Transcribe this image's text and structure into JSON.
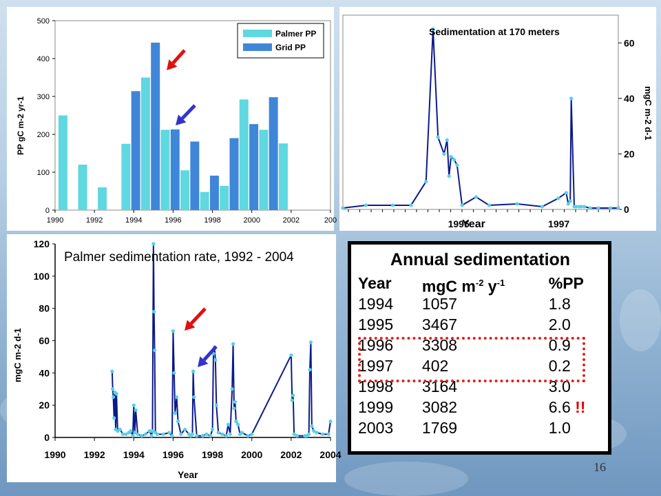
{
  "slide_number": "16",
  "colors": {
    "palmer_pp": "#5fd8e0",
    "grid_pp": "#3f86d8",
    "line_dark": "#0a1a8a",
    "marker": "#58d0e6",
    "red_arrow": "#e01010",
    "blue_arrow": "#3333cc"
  },
  "chart_data": [
    {
      "type": "bar",
      "ylabel": "PP gC m-2 yr-1",
      "ylim": [
        0,
        500
      ],
      "xlim": [
        1990,
        2004
      ],
      "yticks": [
        "0",
        "100",
        "200",
        "300",
        "400",
        "500"
      ],
      "xticks": [
        "1990",
        "1992",
        "1994",
        "1996",
        "1998",
        "2000",
        "2002",
        "200"
      ],
      "legend": {
        "position": "top-right"
      },
      "series": [
        {
          "name": "Palmer PP",
          "x": [
            1990.4,
            1991.4,
            1992.4,
            1993.6,
            1994.6,
            1995.6,
            1996.6,
            1997.6,
            1998.6,
            1999.6,
            2000.6,
            2001.6
          ],
          "values": [
            250,
            120,
            60,
            175,
            350,
            212,
            105,
            48,
            64,
            292,
            212,
            176
          ]
        },
        {
          "name": "Grid PP",
          "x": [
            1994.1,
            1995.1,
            1996.1,
            1997.1,
            1998.1,
            1999.1,
            2000.1,
            2001.1
          ],
          "values": [
            314,
            442,
            213,
            181,
            91,
            190,
            227,
            298
          ]
        }
      ]
    },
    {
      "type": "line",
      "title": "Sedimentation at 170 meters",
      "xlabel": "Year",
      "ylabel": "mgC m-2 d-1",
      "ylim": [
        0,
        70
      ],
      "yticks": [
        "0",
        "20",
        "40",
        "60"
      ],
      "xticks": [
        "1996",
        "1997"
      ],
      "x": [
        1995.05,
        1995.28,
        1995.55,
        1995.73,
        1995.88,
        1995.95,
        1996.0,
        1996.06,
        1996.09,
        1996.11,
        1996.13,
        1996.16,
        1996.19,
        1996.24,
        1996.38,
        1996.51,
        1996.79,
        1997.04,
        1997.2,
        1997.28,
        1997.3,
        1997.32,
        1997.33,
        1997.36,
        1997.38,
        1997.41,
        1997.43,
        1997.46,
        1997.52,
        1997.6,
        1997.72,
        1997.8
      ],
      "values": [
        0.5,
        1.5,
        1.5,
        1.5,
        10,
        65,
        26,
        20,
        25,
        12,
        19,
        18,
        16,
        1.5,
        4.5,
        1.5,
        2,
        1,
        4,
        6,
        2,
        3,
        40,
        1,
        1,
        1,
        1,
        1,
        0.5,
        0.5,
        0.5,
        0.5
      ]
    },
    {
      "type": "line",
      "title": "Palmer sedimentation rate, 1992 - 2004",
      "xlabel": "Year",
      "ylabel": "mgC m-2 d-1",
      "ylim": [
        0,
        120
      ],
      "xlim": [
        1990,
        2004
      ],
      "yticks": [
        "0",
        "20",
        "40",
        "60",
        "80",
        "100",
        "120"
      ],
      "xticks": [
        "1990",
        "1992",
        "1994",
        "1996",
        "1998",
        "2000",
        "2002",
        "2004"
      ],
      "x": [
        1992.9,
        1992.93,
        1992.96,
        1993.0,
        1993.04,
        1993.08,
        1993.12,
        1993.18,
        1993.3,
        1993.45,
        1993.6,
        1993.75,
        1993.85,
        1993.95,
        1994.0,
        1994.05,
        1994.1,
        1994.2,
        1994.4,
        1994.6,
        1994.8,
        1994.9,
        1994.95,
        1995.0,
        1995.03,
        1995.06,
        1995.1,
        1995.2,
        1995.5,
        1995.8,
        1995.95,
        1996.0,
        1996.05,
        1996.1,
        1996.18,
        1996.25,
        1996.4,
        1996.6,
        1996.8,
        1996.9,
        1996.98,
        1997.02,
        1997.06,
        1997.2,
        1997.5,
        1997.7,
        1997.9,
        1998.0,
        1998.05,
        1998.1,
        1998.15,
        1998.2,
        1998.3,
        1998.5,
        1998.7,
        1998.8,
        1998.9,
        1999.0,
        1999.05,
        1999.1,
        1999.15,
        1999.2,
        1999.3,
        1999.4,
        1999.5,
        1999.8,
        2000.0,
        2002.0,
        2002.05,
        2002.1,
        2002.15,
        2002.3,
        2002.7,
        2002.8,
        2002.9,
        2002.95,
        2003.0,
        2003.05,
        2003.15,
        2003.3,
        2003.6,
        2003.9,
        2004.0
      ],
      "values": [
        41,
        30,
        25,
        12,
        28,
        5,
        27,
        4,
        5,
        2,
        2,
        3,
        4,
        1,
        20,
        3,
        17,
        2,
        1,
        2,
        4,
        1,
        4,
        120,
        78,
        54,
        3,
        2,
        2,
        3,
        1,
        66,
        40,
        15,
        25,
        10,
        2,
        5,
        2,
        1,
        2,
        41,
        25,
        1,
        1,
        2,
        1,
        5,
        52,
        56,
        48,
        20,
        3,
        2,
        1,
        8,
        2,
        30,
        58,
        18,
        22,
        10,
        8,
        2,
        3,
        1,
        2,
        51,
        23,
        26,
        2,
        1,
        1,
        1,
        2,
        42,
        59,
        7,
        4,
        3,
        2,
        2,
        10
      ]
    }
  ],
  "table": {
    "title": "Annual sedimentation",
    "headers": {
      "year": "Year",
      "unit_base": "mgC m",
      "unit_exp1": "-2",
      "unit_mid": " y",
      "unit_exp2": "-1",
      "pp": "%PP"
    },
    "rows": [
      {
        "year": "1994",
        "mgc": "1057",
        "pp": "1.8",
        "flag": ""
      },
      {
        "year": "1995",
        "mgc": "3467",
        "pp": "2.0",
        "flag": ""
      },
      {
        "year": "1996",
        "mgc": "3308",
        "pp": "0.9",
        "flag": ""
      },
      {
        "year": "1997",
        "mgc": "402",
        "pp": "0.2",
        "flag": ""
      },
      {
        "year": "1998",
        "mgc": "3164",
        "pp": "3.0",
        "flag": ""
      },
      {
        "year": "1999",
        "mgc": "3082",
        "pp": "6.6",
        "flag": "!!"
      },
      {
        "year": "2003",
        "mgc": "1769",
        "pp": "1.0",
        "flag": ""
      }
    ]
  }
}
